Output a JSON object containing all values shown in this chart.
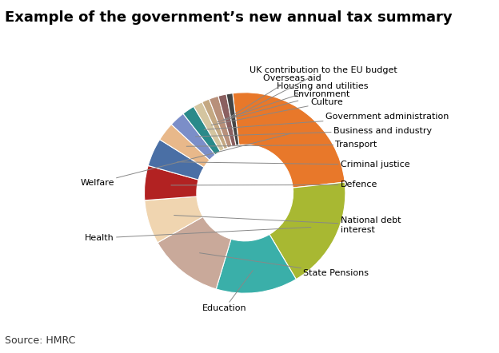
{
  "title": "Example of the government’s new annual tax summary",
  "source": "Source: HMRC",
  "slices": [
    {
      "label": "Welfare",
      "value": 25.0,
      "color": "#E8782A"
    },
    {
      "label": "Health",
      "value": 18.0,
      "color": "#A8B832"
    },
    {
      "label": "Education",
      "value": 13.0,
      "color": "#3AAFA9"
    },
    {
      "label": "State Pensions",
      "value": 12.0,
      "color": "#C9A99A"
    },
    {
      "label": "National debt\ninterest",
      "value": 7.0,
      "color": "#F0D5B0"
    },
    {
      "label": "Defence",
      "value": 5.5,
      "color": "#B22222"
    },
    {
      "label": "Criminal justice",
      "value": 4.5,
      "color": "#4A6FA5"
    },
    {
      "label": "Transport",
      "value": 3.0,
      "color": "#E8B88A"
    },
    {
      "label": "Business and industry",
      "value": 2.5,
      "color": "#7B8EC8"
    },
    {
      "label": "Government administration",
      "value": 2.0,
      "color": "#2A8A8A"
    },
    {
      "label": "Culture",
      "value": 1.5,
      "color": "#D4C5A0"
    },
    {
      "label": "Environment",
      "value": 1.2,
      "color": "#C4A882"
    },
    {
      "label": "Housing and utilities",
      "value": 1.5,
      "color": "#B8907A"
    },
    {
      "label": "Overseas aid",
      "value": 1.3,
      "color": "#8B6060"
    },
    {
      "label": "UK contribution to the EU budget",
      "value": 1.0,
      "color": "#444444"
    }
  ],
  "startangle": 97,
  "label_fontsize": 8,
  "title_fontsize": 13,
  "source_fontsize": 9,
  "fig_width": 6.24,
  "fig_height": 4.42,
  "dpi": 100
}
